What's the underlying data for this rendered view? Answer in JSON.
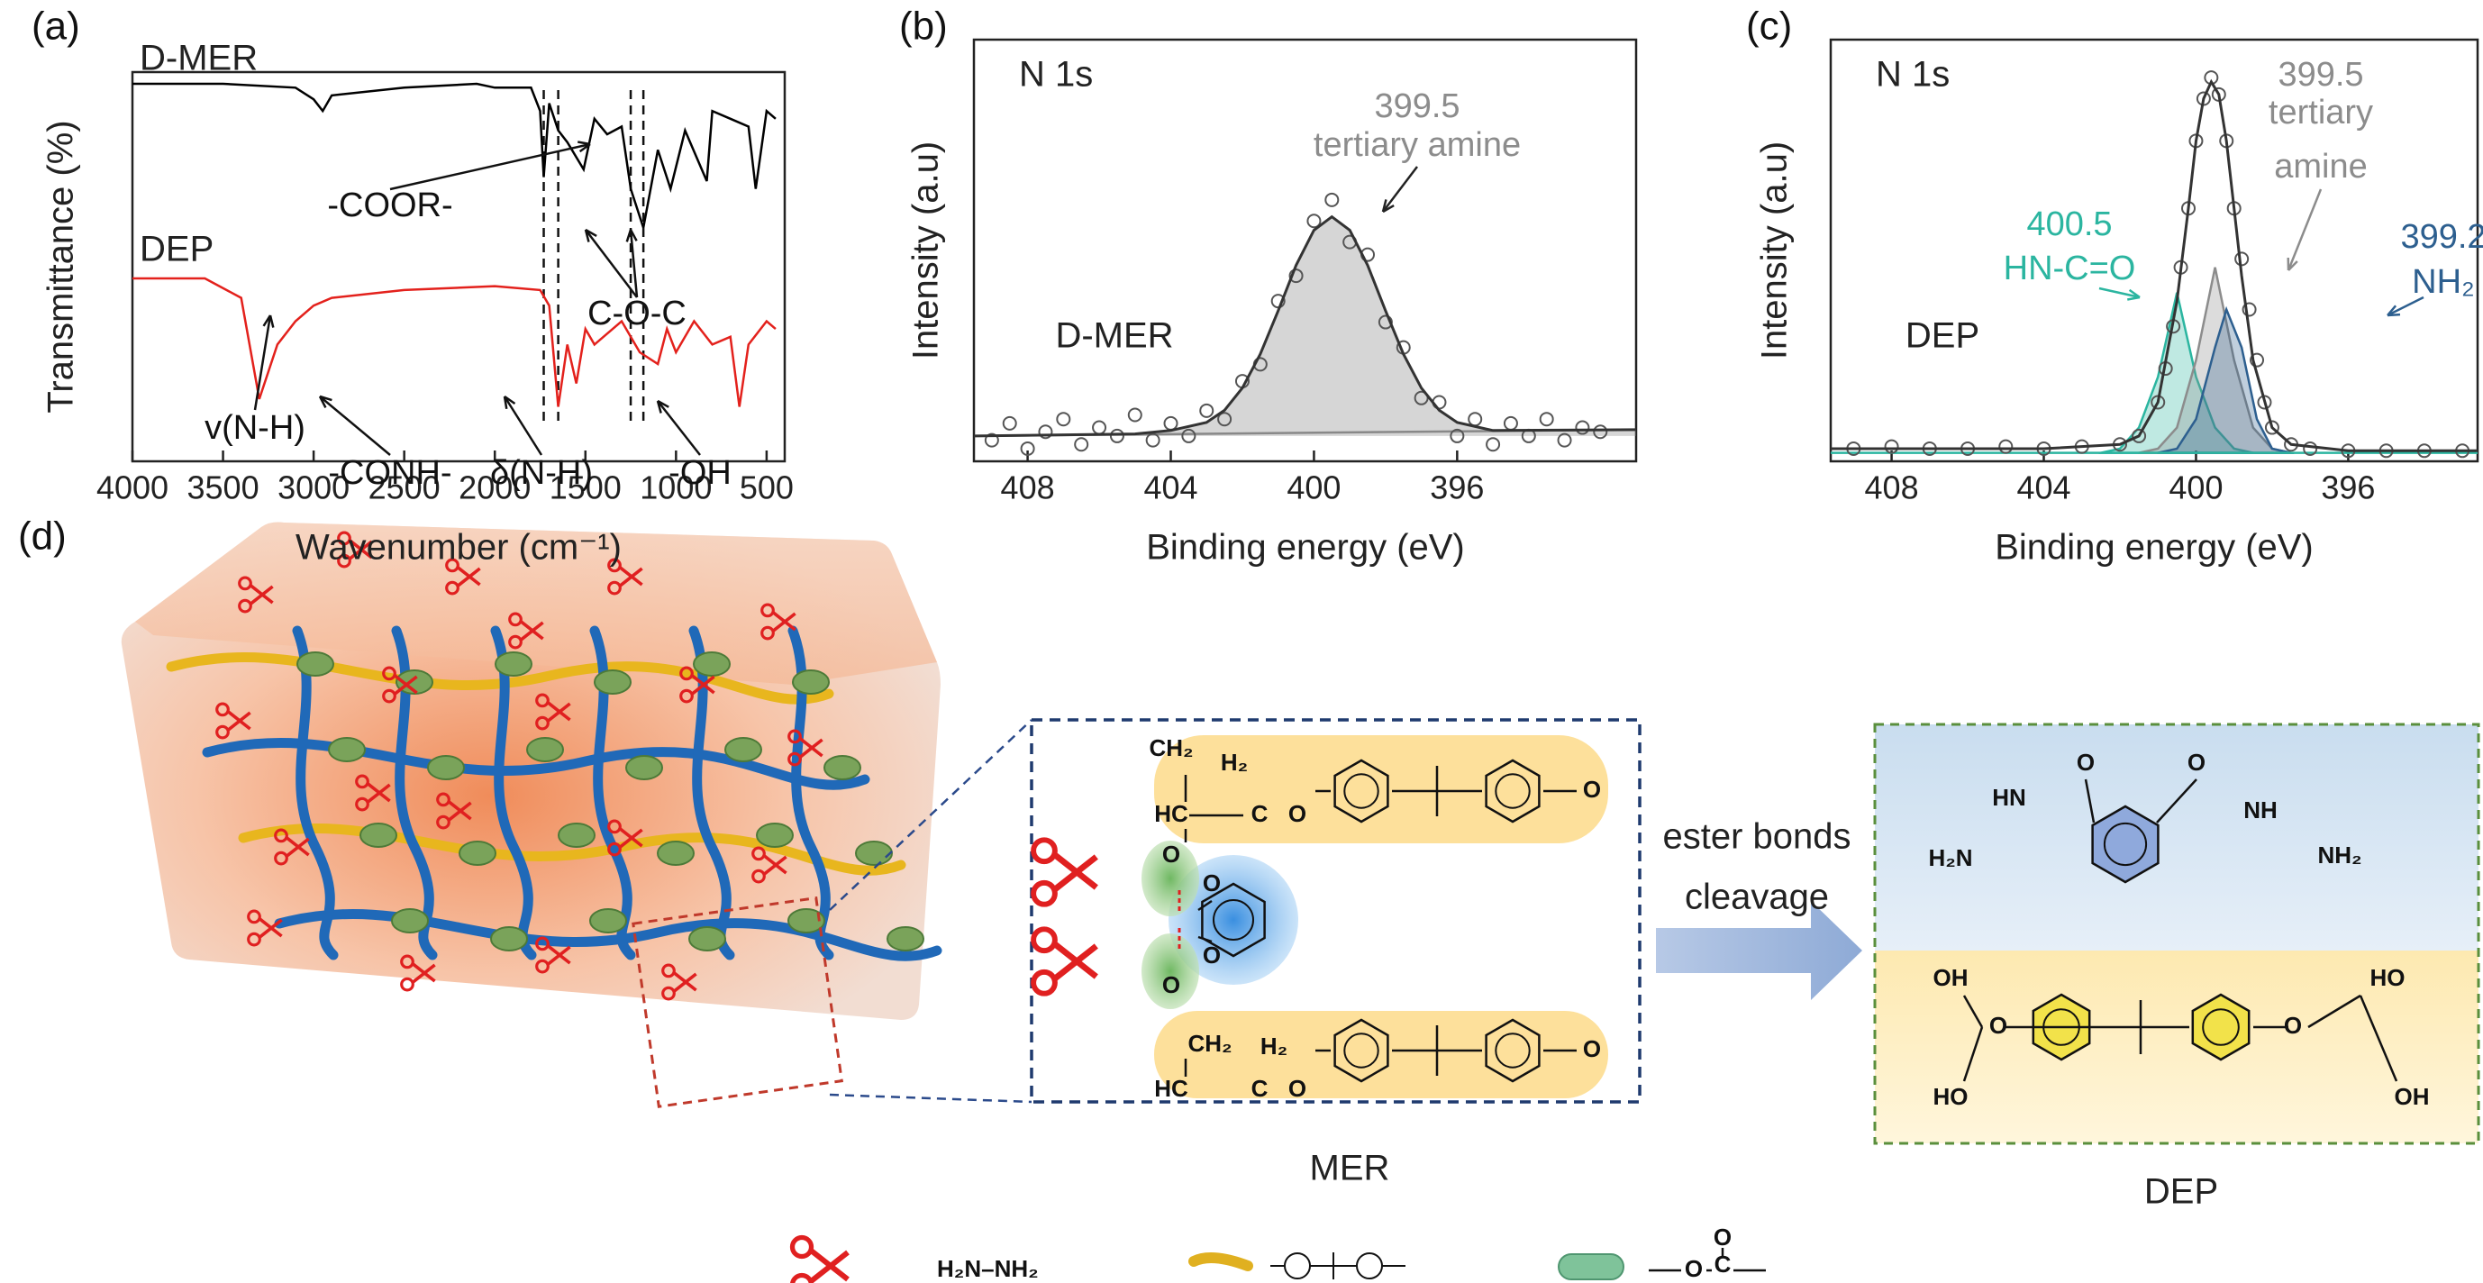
{
  "chart_data": [
    {
      "type": "line",
      "panel_label": "(a)",
      "xlabel": "Wavenumber (cm⁻¹)",
      "ylabel": "Transmittance (%)",
      "xlim": [
        4000,
        400
      ],
      "xticks": [
        4000,
        3500,
        3000,
        2500,
        2000,
        1500,
        1000,
        500
      ],
      "ylim": [
        0,
        100
      ],
      "series": [
        {
          "name": "D-MER",
          "color": "#000000",
          "x": [
            4000,
            3500,
            3100,
            3000,
            2950,
            2900,
            2500,
            2100,
            2000,
            1800,
            1750,
            1730,
            1700,
            1650,
            1600,
            1510,
            1450,
            1380,
            1300,
            1250,
            1180,
            1100,
            1030,
            950,
            830,
            800,
            700,
            600,
            560,
            500,
            450
          ],
          "values": [
            97,
            97,
            96,
            93,
            90,
            94,
            96,
            97,
            96,
            96,
            90,
            73,
            92,
            85,
            82,
            75,
            88,
            84,
            86,
            70,
            60,
            80,
            70,
            85,
            72,
            90,
            88,
            86,
            70,
            90,
            88
          ]
        },
        {
          "name": "DEP",
          "color": "#e3211c",
          "x": [
            4000,
            3600,
            3400,
            3300,
            3200,
            3100,
            3000,
            2900,
            2500,
            2000,
            1750,
            1700,
            1650,
            1600,
            1550,
            1500,
            1450,
            1300,
            1200,
            1100,
            1050,
            1000,
            900,
            800,
            700,
            650,
            600,
            500,
            450
          ],
          "values": [
            47,
            47,
            42,
            16,
            30,
            36,
            40,
            42,
            44,
            45,
            44,
            40,
            14,
            30,
            20,
            34,
            30,
            36,
            28,
            25,
            34,
            28,
            36,
            30,
            32,
            14,
            30,
            36,
            34
          ]
        }
      ],
      "reference_lines": [
        1730,
        1650,
        1250,
        1180
      ],
      "annotations": [
        "-COOR-",
        "C-O-C",
        "v(N-H)",
        "-CONH-",
        "δ(N-H)",
        "-OH"
      ]
    },
    {
      "type": "scatter",
      "panel_label": "(b)",
      "title": "N 1s",
      "sample": "D-MER",
      "xlabel": "Binding energy (eV)",
      "ylabel": "Intensity (a.u)",
      "xlim": [
        409.5,
        391
      ],
      "xticks": [
        408,
        404,
        400,
        396
      ],
      "ylim": [
        0,
        100
      ],
      "points": {
        "color": "#555555",
        "x": [
          409,
          408.5,
          408,
          407.5,
          407,
          406.5,
          406,
          405.5,
          405,
          404.5,
          404,
          403.5,
          403,
          402.5,
          402,
          401.5,
          401,
          400.5,
          400,
          399.5,
          399,
          398.5,
          398,
          397.5,
          397,
          396.5,
          396,
          395.5,
          395,
          394.5,
          394,
          393.5,
          393,
          392.5,
          392
        ],
        "values": [
          5,
          9,
          3,
          7,
          10,
          4,
          8,
          6,
          11,
          5,
          9,
          6,
          12,
          10,
          19,
          23,
          38,
          44,
          57,
          62,
          52,
          49,
          33,
          27,
          15,
          14,
          6,
          10,
          4,
          9,
          6,
          10,
          5,
          8,
          7
        ]
      },
      "fit": {
        "color": "#333333",
        "x": [
          409.5,
          405,
          404,
          403,
          402.5,
          402,
          401.5,
          401,
          400.5,
          400,
          399.5,
          399,
          398.5,
          398,
          397.5,
          397,
          396.5,
          396,
          395,
          391
        ],
        "values": [
          6,
          6.5,
          7.3,
          9.2,
          12.1,
          17.4,
          25.4,
          35.7,
          46.5,
          54.8,
          58,
          54.8,
          46.5,
          35.7,
          25.4,
          17.4,
          12.1,
          9.2,
          7.3,
          7.5
        ]
      },
      "baseline": {
        "color": "#888888",
        "x": [
          409.5,
          391
        ],
        "values": [
          6,
          7.5
        ]
      },
      "fill_color": "#8a8a8a",
      "annotations": [
        {
          "text": "399.5",
          "color": "#8c8c8c"
        },
        {
          "text": "tertiary amine",
          "color": "#8c8c8c"
        }
      ]
    },
    {
      "type": "scatter",
      "panel_label": "(c)",
      "title": "N 1s",
      "sample": "DEP",
      "xlabel": "Binding energy (eV)",
      "ylabel": "Intensity (a.u)",
      "xlim": [
        409.6,
        392.6
      ],
      "xticks": [
        408,
        404,
        400,
        396
      ],
      "ylim": [
        0,
        100
      ],
      "points": {
        "color": "#555555",
        "x": [
          409,
          408,
          407,
          406,
          405,
          404,
          403,
          402,
          401.5,
          401,
          400.8,
          400.6,
          400.4,
          400.2,
          400,
          399.8,
          399.6,
          399.4,
          399.2,
          399,
          398.8,
          398.6,
          398.4,
          398.2,
          398,
          397.5,
          397,
          396,
          395,
          394,
          393
        ],
        "values": [
          3,
          3.5,
          3,
          3,
          3.5,
          3,
          3.5,
          4,
          6,
          14,
          22,
          32,
          46,
          60,
          76,
          86,
          91,
          87,
          76,
          60,
          48,
          36,
          24,
          14,
          8,
          4,
          3,
          2.5,
          2.5,
          2.5,
          2.5
        ]
      },
      "fit": {
        "color": "#333333",
        "x": [
          409.6,
          404,
          402,
          401.5,
          401,
          400.5,
          400.2,
          400,
          399.8,
          399.6,
          399.4,
          399.2,
          399,
          398.8,
          398.5,
          398,
          397.5,
          396,
          392.6
        ],
        "values": [
          3,
          3,
          4,
          6,
          14,
          38,
          60,
          76,
          86,
          90,
          87,
          76,
          60,
          44,
          24,
          8,
          4,
          2.5,
          2.5
        ]
      },
      "baseline": {
        "color": "#2bb5a0",
        "x": [
          409.6,
          392.6
        ],
        "values": [
          2,
          2
        ]
      },
      "components": [
        {
          "color": "#2bb5a0",
          "x": [
            402.5,
            402,
            401.5,
            401,
            400.5,
            400,
            399.5,
            399,
            398.5
          ],
          "values": [
            2,
            3,
            8,
            20,
            40,
            20,
            8,
            3,
            2
          ]
        },
        {
          "color": "#8c8c8c",
          "x": [
            401.5,
            401,
            400.5,
            400,
            399.5,
            399,
            398.5,
            398,
            397.5
          ],
          "values": [
            2,
            3,
            8,
            24,
            46,
            24,
            8,
            3,
            2
          ]
        },
        {
          "color": "#2d5f8f",
          "x": [
            401,
            400.5,
            400,
            399.5,
            399.2,
            398.8,
            398.4,
            398,
            397.5
          ],
          "values": [
            2,
            3,
            10,
            27,
            36,
            27,
            10,
            3,
            2
          ]
        }
      ],
      "annotations": [
        {
          "text": "399.5",
          "color": "#8c8c8c"
        },
        {
          "text": "tertiary",
          "color": "#8c8c8c"
        },
        {
          "text": "amine",
          "color": "#8c8c8c"
        },
        {
          "text": "400.5",
          "color": "#2bb5a0"
        },
        {
          "text": "HN-C=O",
          "color": "#2bb5a0"
        },
        {
          "text": "399.2",
          "color": "#2d5f8f"
        },
        {
          "text": "NH₂",
          "color": "#2d5f8f"
        }
      ]
    }
  ],
  "diagram": {
    "panel_label": "(d)",
    "zoom_label": "MER",
    "arrow_text": [
      "ester bonds",
      "cleavage"
    ],
    "product_label": "DEP",
    "mer_text": [
      "CH₂",
      "H₂",
      "HC",
      "C",
      "O",
      "O",
      "O",
      "O",
      "O",
      "CH₂",
      "H₂",
      "HC",
      "C",
      "O",
      "O",
      "O"
    ],
    "dep_text": [
      "O",
      "O",
      "HN",
      "NH",
      "H₂N",
      "NH₂",
      "OH",
      "O",
      "O",
      "HO",
      "HO",
      "OH"
    ],
    "legend": [
      "H₂N–NH₂"
    ],
    "legend_ester": [
      "O",
      "C",
      "O"
    ]
  }
}
